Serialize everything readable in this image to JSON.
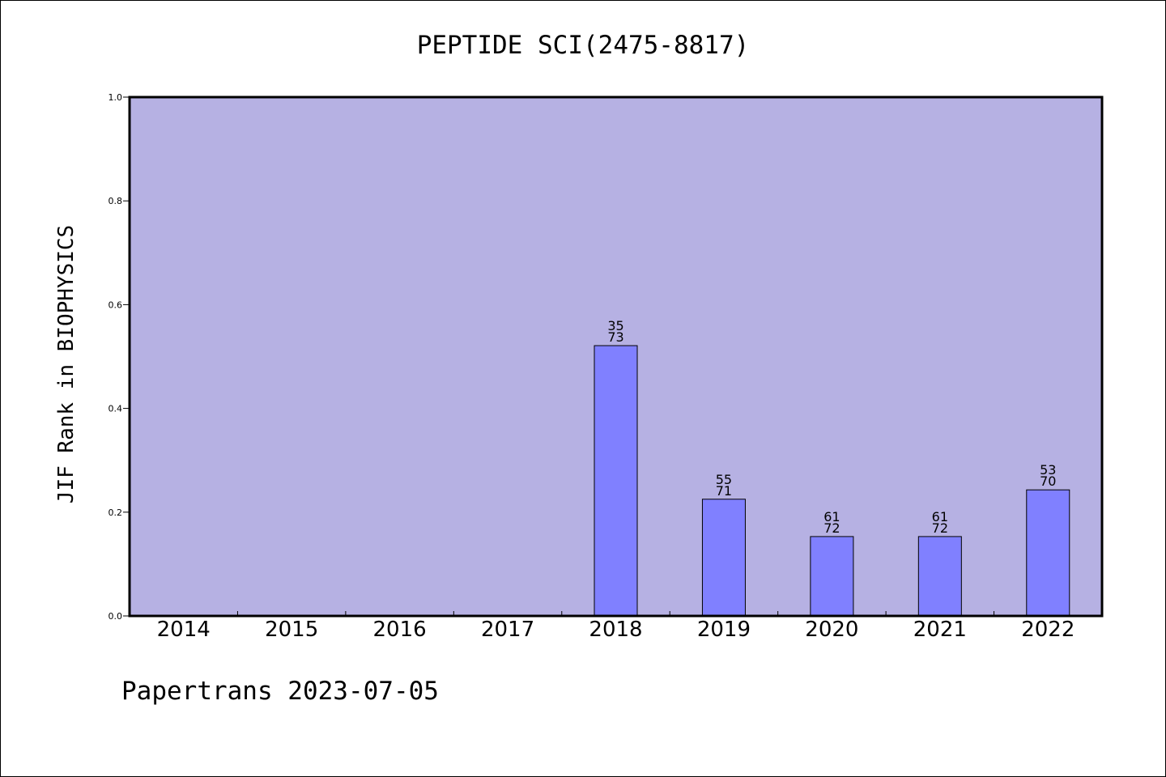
{
  "chart_data": {
    "type": "bar",
    "title": "PEPTIDE SCI(2475-8817)",
    "ylabel": "JIF Rank in BIOPHYSICS",
    "xlabel": "",
    "ylim": [
      0,
      1.0
    ],
    "yticks": [
      "0.0",
      "0.2",
      "0.4",
      "0.6",
      "0.8",
      "1.0"
    ],
    "categories": [
      "2014",
      "2015",
      "2016",
      "2017",
      "2018",
      "2019",
      "2020",
      "2021",
      "2022"
    ],
    "values": [
      null,
      null,
      null,
      null,
      0.521,
      0.225,
      0.153,
      0.153,
      0.243
    ],
    "labels_top": [
      "",
      "",
      "",
      "",
      "35",
      "55",
      "61",
      "61",
      "53"
    ],
    "labels_bottom": [
      "",
      "",
      "",
      "",
      "73",
      "71",
      "72",
      "72",
      "70"
    ],
    "grid": false,
    "colors": {
      "plot_background": "#b6b1e3",
      "bar_fill": "#8080ff",
      "bar_stroke": "#000000",
      "axis": "#000000"
    }
  },
  "footer": {
    "credit": "Papertrans 2023-07-05"
  }
}
